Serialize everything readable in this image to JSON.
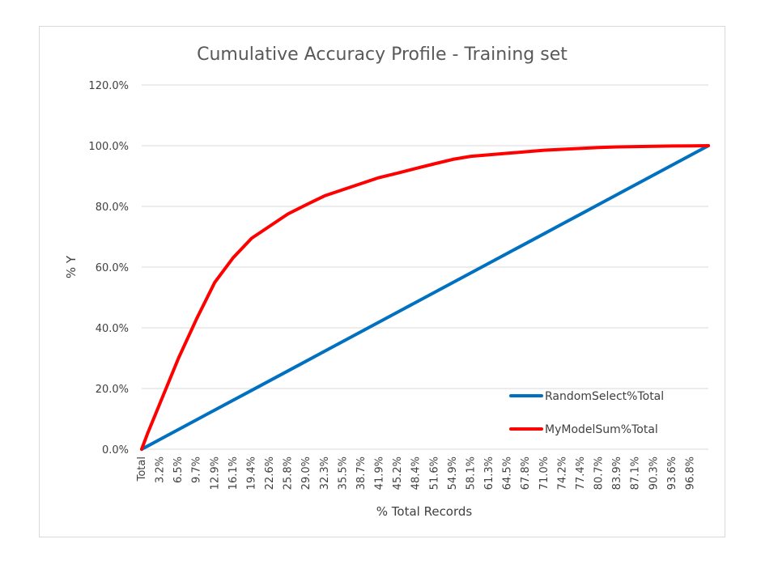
{
  "chart_data": {
    "type": "line",
    "title": "Cumulative Accuracy Profile - Training set",
    "xlabel": "% Total Records",
    "ylabel": "% Y",
    "ylim": [
      0,
      120
    ],
    "y_ticks": [
      "0.0%",
      "20.0%",
      "40.0%",
      "60.0%",
      "80.0%",
      "100.0%",
      "120.0%"
    ],
    "y_tick_values": [
      0,
      20,
      40,
      60,
      80,
      100,
      120
    ],
    "x_tick_labels": [
      "Total",
      "3.2%",
      "6.5%",
      "9.7%",
      "12.9%",
      "16.1%",
      "19.4%",
      "22.6%",
      "25.8%",
      "29.0%",
      "32.3%",
      "35.5%",
      "38.7%",
      "41.9%",
      "45.2%",
      "48.4%",
      "51.6%",
      "54.9%",
      "58.1%",
      "61.3%",
      "64.5%",
      "67.8%",
      "71.0%",
      "74.2%",
      "77.4%",
      "80.7%",
      "83.9%",
      "87.1%",
      "90.3%",
      "93.6%",
      "96.8%"
    ],
    "x": [
      0,
      1,
      3.2,
      6.5,
      9.7,
      12.9,
      16.1,
      19.4,
      22.6,
      25.8,
      29.0,
      32.3,
      35.5,
      38.7,
      41.9,
      45.2,
      48.4,
      51.6,
      54.9,
      58.1,
      61.3,
      64.5,
      67.8,
      71.0,
      74.2,
      77.4,
      80.7,
      83.9,
      87.1,
      90.3,
      93.6,
      96.8,
      100
    ],
    "grid": true,
    "legend_position": "right",
    "series": [
      {
        "name": "RandomSelect%Total",
        "color": "#0070c0",
        "values": [
          0,
          1,
          3.2,
          6.5,
          9.7,
          12.9,
          16.1,
          19.4,
          22.6,
          25.8,
          29.0,
          32.3,
          35.5,
          38.7,
          41.9,
          45.2,
          48.4,
          51.6,
          54.9,
          58.1,
          61.3,
          64.5,
          67.8,
          71.0,
          74.2,
          77.4,
          80.7,
          83.9,
          87.1,
          90.3,
          93.6,
          96.8,
          100
        ]
      },
      {
        "name": "MyModelSum%Total",
        "color": "#ff0000",
        "values": [
          0,
          5,
          15,
          30,
          43,
          55,
          63,
          69.5,
          73.5,
          77.5,
          80.5,
          83.5,
          85.5,
          87.5,
          89.5,
          91,
          92.5,
          94,
          95.5,
          96.5,
          97,
          97.5,
          98,
          98.5,
          98.8,
          99.1,
          99.4,
          99.6,
          99.7,
          99.8,
          99.9,
          99.95,
          100
        ]
      }
    ]
  }
}
